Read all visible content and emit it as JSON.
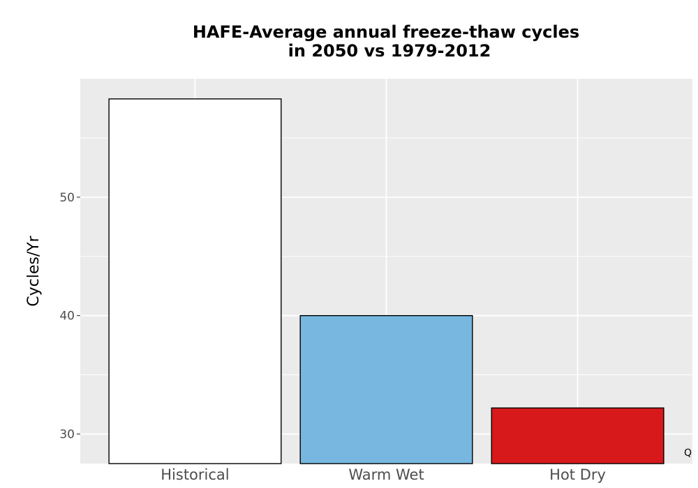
{
  "chart_data": {
    "type": "bar",
    "title_line1": "HAFE-Average annual freeze-thaw cycles",
    "title_line2": "in 2050 vs 1979-2012",
    "xlabel": "",
    "ylabel": "Cycles/Yr",
    "categories": [
      "Historical",
      "Warm Wet",
      "Hot Dry"
    ],
    "values": [
      58.3,
      40.0,
      32.2
    ],
    "colors": [
      "#ffffff",
      "#78b7e0",
      "#d7191c"
    ],
    "y_ticks": [
      30,
      40,
      50
    ],
    "ylim": [
      27.5,
      60.0
    ],
    "grid": true,
    "panel_background": "#ebebeb",
    "bar_outline": "#000000",
    "corner_note": "Q"
  }
}
